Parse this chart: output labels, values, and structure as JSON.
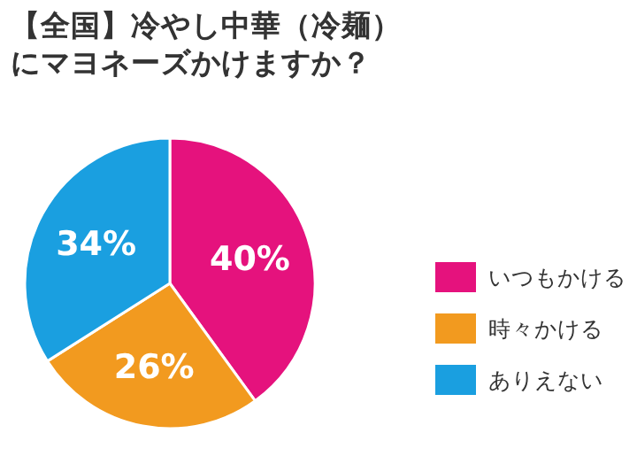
{
  "chart_data": {
    "type": "pie",
    "title": "【全国】冷やし中華（冷麺）にマヨネーズかけますか？",
    "categories": [
      "いつもかける",
      "時々かける",
      "ありえない"
    ],
    "values": [
      40,
      26,
      34
    ],
    "value_labels": [
      "40%",
      "26%",
      "34%"
    ],
    "colors": [
      "#e5127d",
      "#f29a1f",
      "#1a9fe0"
    ],
    "legend": "right"
  }
}
